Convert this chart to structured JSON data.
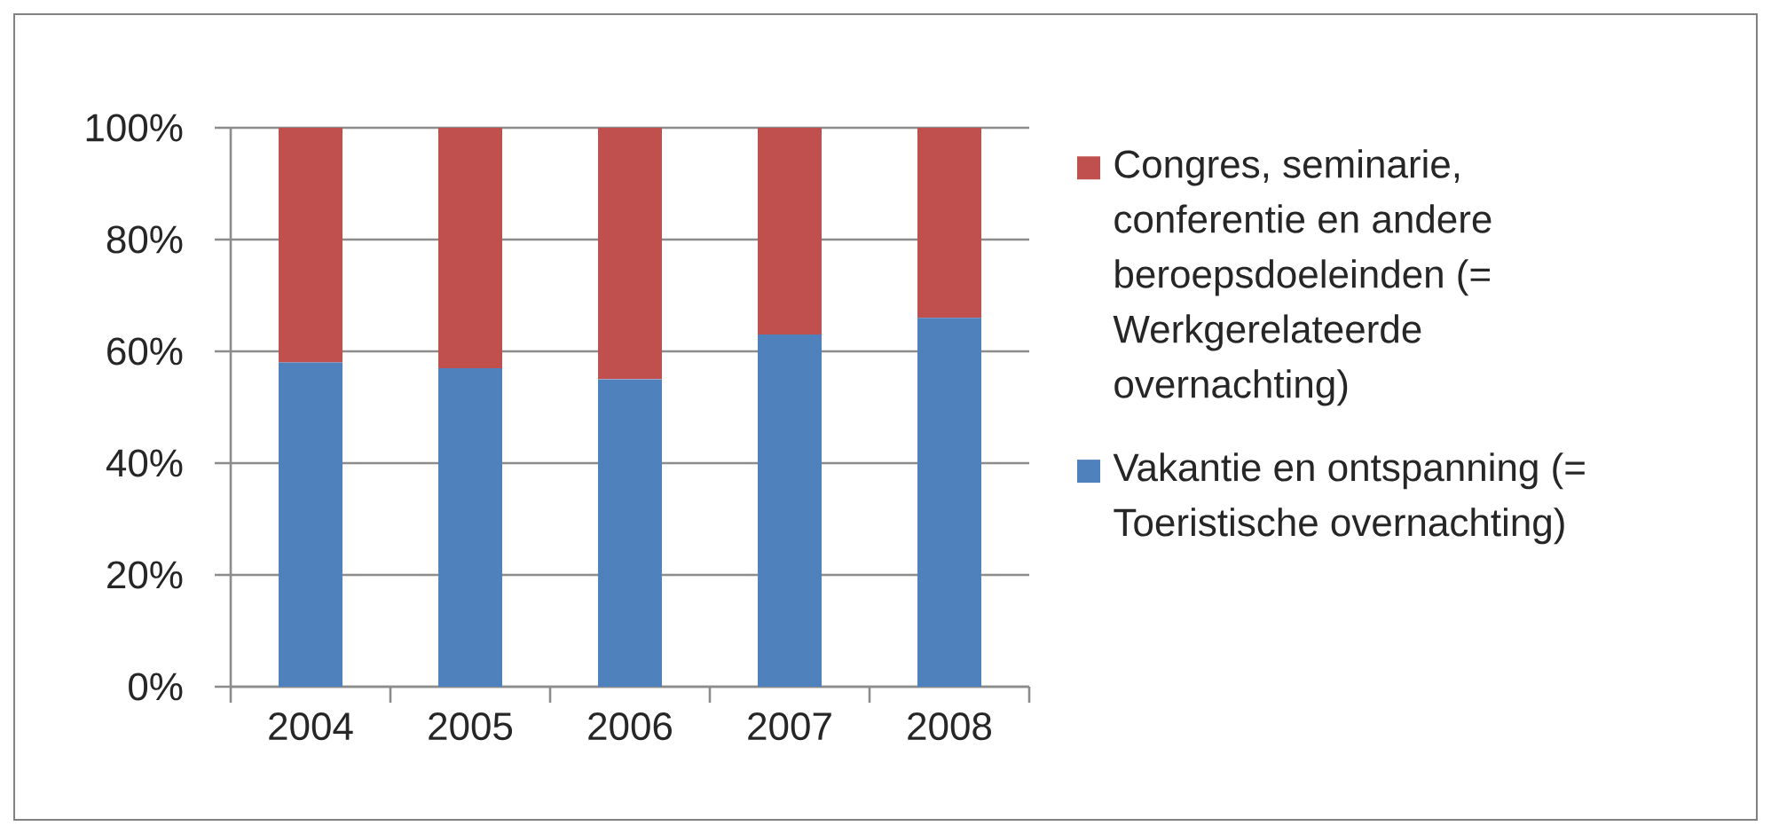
{
  "chart_data": {
    "type": "bar",
    "stacked": true,
    "categories": [
      "2004",
      "2005",
      "2006",
      "2007",
      "2008"
    ],
    "series": [
      {
        "name": "Vakantie en ontspanning (= Toeristische overnachting)",
        "color": "#4f81bd",
        "values": [
          58,
          57,
          55,
          63,
          66
        ]
      },
      {
        "name": "Congres, seminarie, conferentie en andere beroepsdoeleinden (= Werkgerelateerde overnachting)",
        "color": "#c0504d",
        "values": [
          42,
          43,
          45,
          37,
          34
        ]
      }
    ],
    "ylim": [
      0,
      100
    ],
    "yticks": [
      {
        "value": 0,
        "label": "0%"
      },
      {
        "value": 20,
        "label": "20%"
      },
      {
        "value": 40,
        "label": "40%"
      },
      {
        "value": 60,
        "label": "60%"
      },
      {
        "value": 80,
        "label": "80%"
      },
      {
        "value": 100,
        "label": "100%"
      }
    ],
    "grid": "y",
    "legend": "right"
  }
}
